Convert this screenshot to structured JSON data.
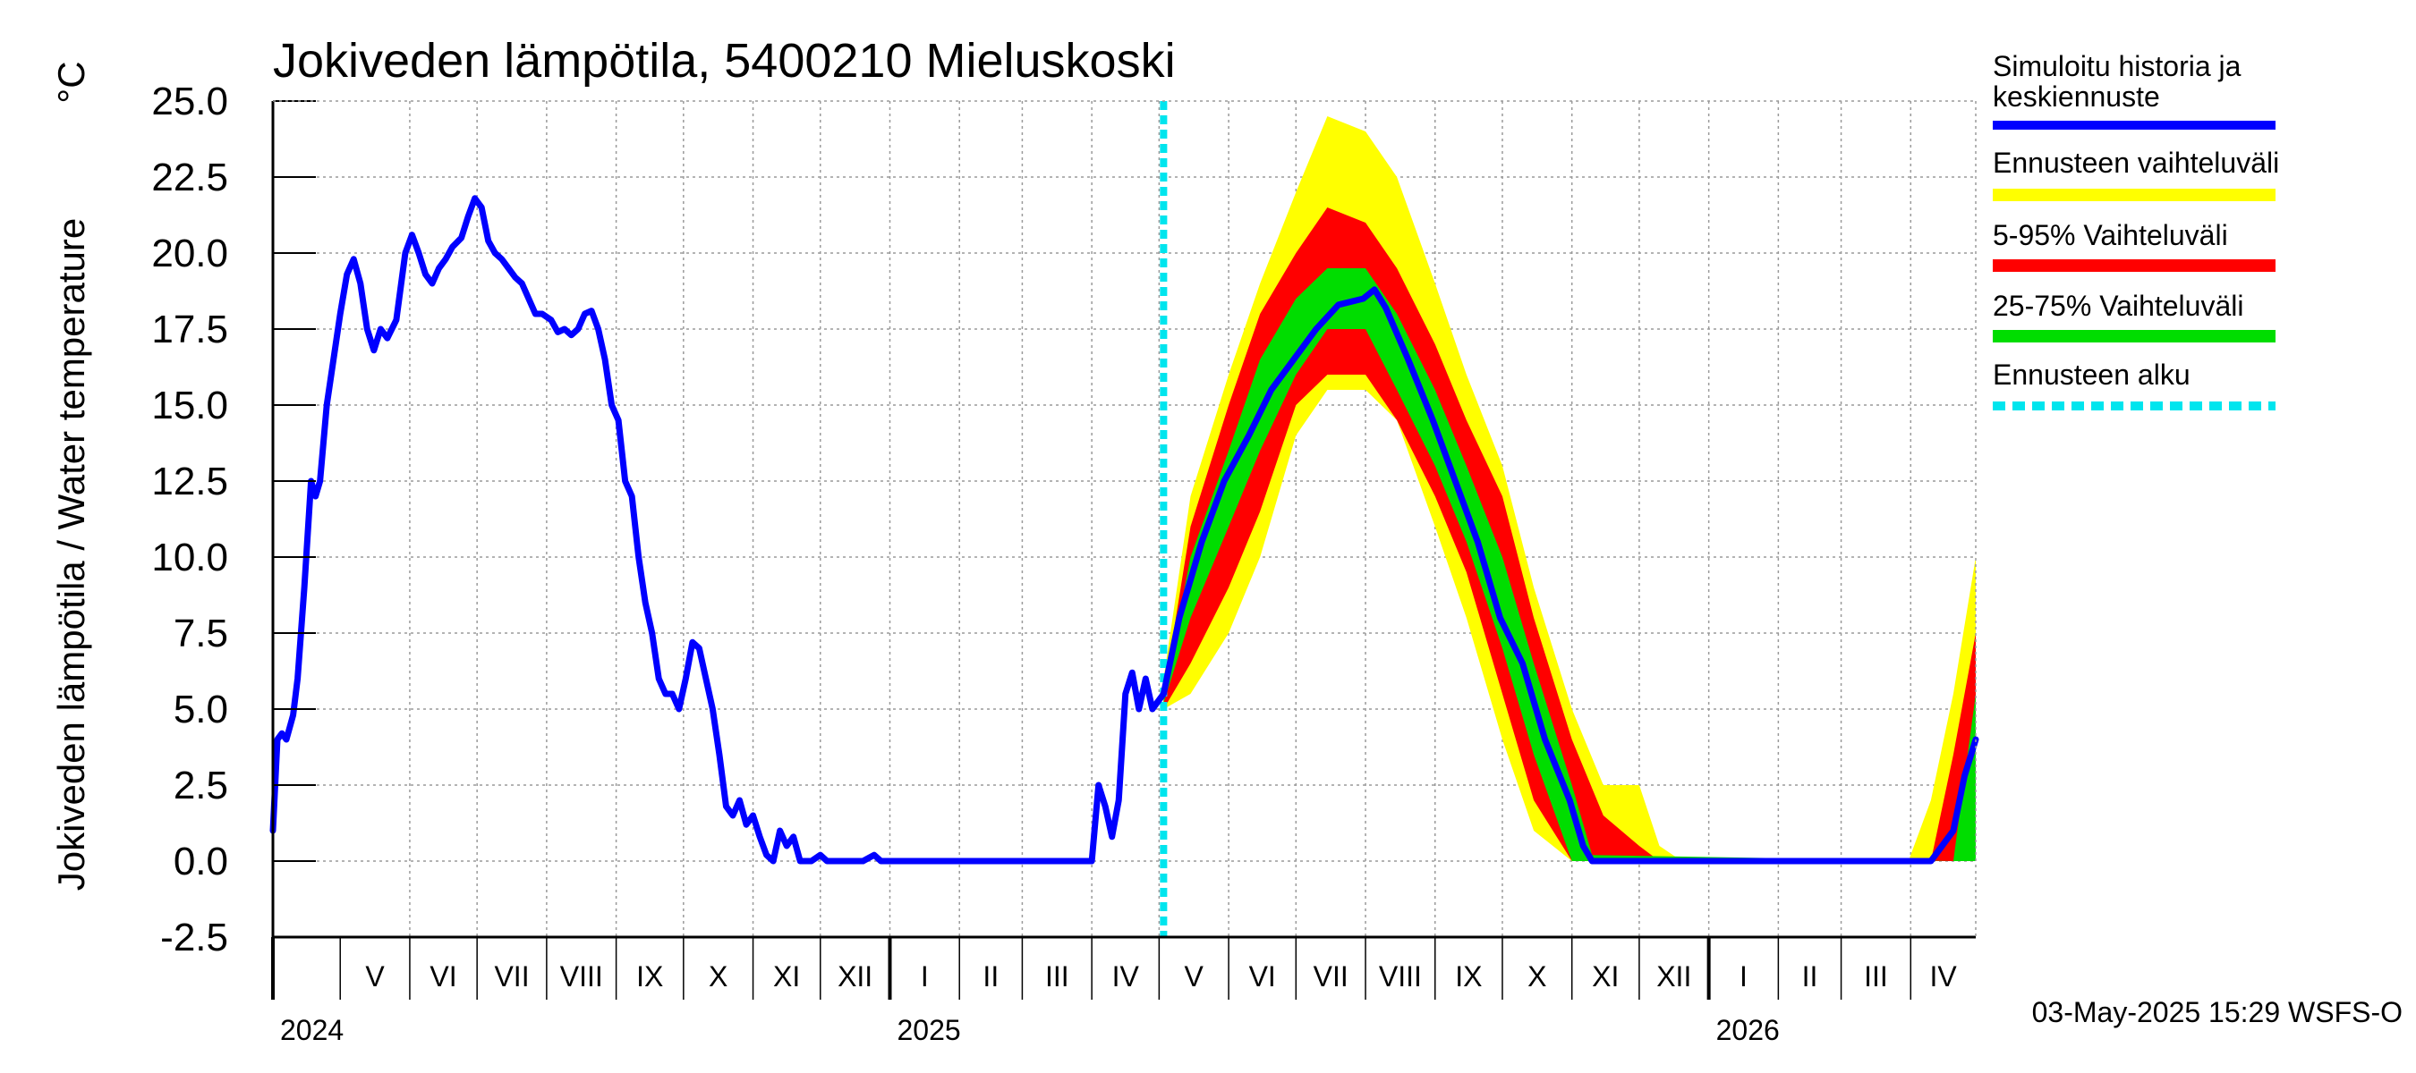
{
  "chart_data": {
    "type": "line",
    "title": "Jokiveden lämpötila, 5400210 Mieluskoski",
    "ylabel": "Jokiveden lämpötila / Water temperature",
    "yunit": "°C",
    "ylim": [
      -2.5,
      25.0
    ],
    "yticks": [
      "25.0",
      "22.5",
      "20.0",
      "17.5",
      "15.0",
      "12.5",
      "10.0",
      "7.5",
      "5.0",
      "2.5",
      "0.0",
      "-2.5"
    ],
    "xlim": [
      "2024-04-01",
      "2026-04-30"
    ],
    "forecast_start": "2025-05-03",
    "grid": true,
    "months": [
      {
        "label": "V",
        "start": "2024-05-01",
        "end": "2024-05-31"
      },
      {
        "label": "VI",
        "start": "2024-06-01",
        "end": "2024-06-30"
      },
      {
        "label": "VII",
        "start": "2024-07-01",
        "end": "2024-07-31"
      },
      {
        "label": "VIII",
        "start": "2024-08-01",
        "end": "2024-08-31"
      },
      {
        "label": "IX",
        "start": "2024-09-01",
        "end": "2024-09-30"
      },
      {
        "label": "X",
        "start": "2024-10-01",
        "end": "2024-10-31"
      },
      {
        "label": "XI",
        "start": "2024-11-01",
        "end": "2024-11-30"
      },
      {
        "label": "XII",
        "start": "2024-12-01",
        "end": "2024-12-31"
      },
      {
        "label": "I",
        "start": "2025-01-01",
        "end": "2025-01-31"
      },
      {
        "label": "II",
        "start": "2025-02-01",
        "end": "2025-02-28"
      },
      {
        "label": "III",
        "start": "2025-03-01",
        "end": "2025-03-31"
      },
      {
        "label": "IV",
        "start": "2025-04-01",
        "end": "2025-04-30"
      },
      {
        "label": "V",
        "start": "2025-05-01",
        "end": "2025-05-31"
      },
      {
        "label": "VI",
        "start": "2025-06-01",
        "end": "2025-06-30"
      },
      {
        "label": "VII",
        "start": "2025-07-01",
        "end": "2025-07-31"
      },
      {
        "label": "VIII",
        "start": "2025-08-01",
        "end": "2025-08-31"
      },
      {
        "label": "IX",
        "start": "2025-09-01",
        "end": "2025-09-30"
      },
      {
        "label": "X",
        "start": "2025-10-01",
        "end": "2025-10-31"
      },
      {
        "label": "XI",
        "start": "2025-11-01",
        "end": "2025-11-30"
      },
      {
        "label": "XII",
        "start": "2025-12-01",
        "end": "2025-12-31"
      },
      {
        "label": "I",
        "start": "2026-01-01",
        "end": "2026-01-31"
      },
      {
        "label": "II",
        "start": "2026-02-01",
        "end": "2026-02-28"
      },
      {
        "label": "III",
        "start": "2026-03-01",
        "end": "2026-03-31"
      },
      {
        "label": "IV",
        "start": "2026-04-01",
        "end": "2026-04-30"
      }
    ],
    "years": [
      {
        "label": "2024",
        "date": "2024-04-01"
      },
      {
        "label": "2025",
        "date": "2025-01-01"
      },
      {
        "label": "2026",
        "date": "2026-01-01"
      }
    ],
    "legend": [
      {
        "label": "Simuloitu historia ja\nkeskiennuste",
        "color": "#0000ff",
        "style": "solid"
      },
      {
        "label": "Ennusteen vaihteluväli",
        "color": "#ffff00",
        "style": "solid"
      },
      {
        "label": "5-95% Vaihteluväli",
        "color": "#ff0000",
        "style": "solid"
      },
      {
        "label": "25-75% Vaihteluväli",
        "color": "#00dd00",
        "style": "solid"
      },
      {
        "label": "Ennusteen alku",
        "color": "#00e5ee",
        "style": "dashed"
      }
    ],
    "colors": {
      "history": "#0000ff",
      "range_full": "#ffff00",
      "range_5_95": "#ff0000",
      "range_25_75": "#00dd00",
      "forecast_start": "#00e5ee"
    },
    "series": [
      {
        "name": "Simuloitu historia ja keskiennuste",
        "points": [
          [
            "2024-04-01",
            1.0
          ],
          [
            "2024-04-03",
            4.0
          ],
          [
            "2024-04-05",
            4.2
          ],
          [
            "2024-04-07",
            4.0
          ],
          [
            "2024-04-10",
            4.8
          ],
          [
            "2024-04-12",
            6.0
          ],
          [
            "2024-04-15",
            9.0
          ],
          [
            "2024-04-18",
            12.5
          ],
          [
            "2024-04-20",
            12.0
          ],
          [
            "2024-04-22",
            12.5
          ],
          [
            "2024-04-25",
            15.0
          ],
          [
            "2024-04-28",
            16.5
          ],
          [
            "2024-05-01",
            18.0
          ],
          [
            "2024-05-04",
            19.3
          ],
          [
            "2024-05-07",
            19.8
          ],
          [
            "2024-05-10",
            19.0
          ],
          [
            "2024-05-13",
            17.5
          ],
          [
            "2024-05-16",
            16.8
          ],
          [
            "2024-05-19",
            17.5
          ],
          [
            "2024-05-22",
            17.2
          ],
          [
            "2024-05-26",
            17.8
          ],
          [
            "2024-05-30",
            20.0
          ],
          [
            "2024-06-02",
            20.6
          ],
          [
            "2024-06-05",
            20.0
          ],
          [
            "2024-06-08",
            19.3
          ],
          [
            "2024-06-11",
            19.0
          ],
          [
            "2024-06-14",
            19.5
          ],
          [
            "2024-06-17",
            19.8
          ],
          [
            "2024-06-20",
            20.2
          ],
          [
            "2024-06-24",
            20.5
          ],
          [
            "2024-06-27",
            21.2
          ],
          [
            "2024-06-30",
            21.8
          ],
          [
            "2024-07-03",
            21.5
          ],
          [
            "2024-07-06",
            20.4
          ],
          [
            "2024-07-09",
            20.0
          ],
          [
            "2024-07-12",
            19.8
          ],
          [
            "2024-07-15",
            19.5
          ],
          [
            "2024-07-18",
            19.2
          ],
          [
            "2024-07-21",
            19.0
          ],
          [
            "2024-07-24",
            18.5
          ],
          [
            "2024-07-27",
            18.0
          ],
          [
            "2024-07-30",
            18.0
          ],
          [
            "2024-08-03",
            17.8
          ],
          [
            "2024-08-06",
            17.4
          ],
          [
            "2024-08-09",
            17.5
          ],
          [
            "2024-08-12",
            17.3
          ],
          [
            "2024-08-15",
            17.5
          ],
          [
            "2024-08-18",
            18.0
          ],
          [
            "2024-08-21",
            18.1
          ],
          [
            "2024-08-24",
            17.5
          ],
          [
            "2024-08-27",
            16.5
          ],
          [
            "2024-08-30",
            15.0
          ],
          [
            "2024-09-02",
            14.5
          ],
          [
            "2024-09-05",
            12.5
          ],
          [
            "2024-09-08",
            12.0
          ],
          [
            "2024-09-11",
            10.0
          ],
          [
            "2024-09-14",
            8.5
          ],
          [
            "2024-09-17",
            7.5
          ],
          [
            "2024-09-20",
            6.0
          ],
          [
            "2024-09-23",
            5.5
          ],
          [
            "2024-09-26",
            5.5
          ],
          [
            "2024-09-29",
            5.0
          ],
          [
            "2024-10-02",
            6.0
          ],
          [
            "2024-10-05",
            7.2
          ],
          [
            "2024-10-08",
            7.0
          ],
          [
            "2024-10-11",
            6.0
          ],
          [
            "2024-10-14",
            5.0
          ],
          [
            "2024-10-17",
            3.5
          ],
          [
            "2024-10-20",
            1.8
          ],
          [
            "2024-10-23",
            1.5
          ],
          [
            "2024-10-26",
            2.0
          ],
          [
            "2024-10-29",
            1.2
          ],
          [
            "2024-11-01",
            1.5
          ],
          [
            "2024-11-04",
            0.8
          ],
          [
            "2024-11-07",
            0.2
          ],
          [
            "2024-11-10",
            0.0
          ],
          [
            "2024-11-13",
            1.0
          ],
          [
            "2024-11-16",
            0.5
          ],
          [
            "2024-11-19",
            0.8
          ],
          [
            "2024-11-22",
            0.0
          ],
          [
            "2024-11-27",
            0.0
          ],
          [
            "2024-12-01",
            0.2
          ],
          [
            "2024-12-04",
            0.0
          ],
          [
            "2024-12-20",
            0.0
          ],
          [
            "2024-12-25",
            0.2
          ],
          [
            "2024-12-28",
            0.0
          ],
          [
            "2025-04-01",
            0.0
          ],
          [
            "2025-04-04",
            2.5
          ],
          [
            "2025-04-07",
            1.8
          ],
          [
            "2025-04-10",
            0.8
          ],
          [
            "2025-04-13",
            2.0
          ],
          [
            "2025-04-16",
            5.5
          ],
          [
            "2025-04-19",
            6.2
          ],
          [
            "2025-04-22",
            5.0
          ],
          [
            "2025-04-25",
            6.0
          ],
          [
            "2025-04-28",
            5.0
          ],
          [
            "2025-05-03",
            5.5
          ],
          [
            "2025-05-10",
            8.0
          ],
          [
            "2025-05-20",
            10.5
          ],
          [
            "2025-05-30",
            12.5
          ],
          [
            "2025-06-10",
            14.0
          ],
          [
            "2025-06-20",
            15.5
          ],
          [
            "2025-06-30",
            16.5
          ],
          [
            "2025-07-10",
            17.5
          ],
          [
            "2025-07-20",
            18.3
          ],
          [
            "2025-07-31",
            18.5
          ],
          [
            "2025-08-05",
            18.8
          ],
          [
            "2025-08-10",
            18.2
          ],
          [
            "2025-08-20",
            16.5
          ],
          [
            "2025-08-31",
            14.5
          ],
          [
            "2025-09-10",
            12.5
          ],
          [
            "2025-09-20",
            10.5
          ],
          [
            "2025-09-30",
            8.0
          ],
          [
            "2025-10-10",
            6.5
          ],
          [
            "2025-10-20",
            4.0
          ],
          [
            "2025-10-31",
            2.0
          ],
          [
            "2025-11-06",
            0.5
          ],
          [
            "2025-11-10",
            0.0
          ],
          [
            "2026-04-10",
            0.0
          ],
          [
            "2026-04-20",
            1.0
          ],
          [
            "2026-04-25",
            2.8
          ],
          [
            "2026-04-30",
            4.0
          ]
        ]
      },
      {
        "name": "Ennusteen vaihteluväli",
        "band": [
          [
            "2025-05-03",
            5.0,
            6.0
          ],
          [
            "2025-05-15",
            5.5,
            12.0
          ],
          [
            "2025-06-01",
            7.5,
            16.0
          ],
          [
            "2025-06-15",
            10.0,
            19.0
          ],
          [
            "2025-07-01",
            14.0,
            22.0
          ],
          [
            "2025-07-15",
            15.5,
            24.5
          ],
          [
            "2025-08-01",
            15.5,
            24.0
          ],
          [
            "2025-08-15",
            14.5,
            22.5
          ],
          [
            "2025-09-01",
            11.0,
            19.0
          ],
          [
            "2025-09-15",
            8.0,
            16.0
          ],
          [
            "2025-10-01",
            4.0,
            13.0
          ],
          [
            "2025-10-15",
            1.0,
            9.0
          ],
          [
            "2025-11-01",
            0.0,
            5.0
          ],
          [
            "2025-11-15",
            0.0,
            2.5
          ],
          [
            "2025-12-01",
            0.0,
            2.5
          ],
          [
            "2025-12-10",
            0.0,
            0.5
          ],
          [
            "2025-12-20",
            0.0,
            0.0
          ],
          [
            "2026-03-31",
            0.0,
            0.0
          ],
          [
            "2026-04-10",
            0.0,
            2.0
          ],
          [
            "2026-04-20",
            0.0,
            5.5
          ],
          [
            "2026-04-30",
            0.0,
            10.0
          ]
        ]
      },
      {
        "name": "5-95% Vaihteluväli",
        "band": [
          [
            "2025-05-03",
            5.0,
            5.5
          ],
          [
            "2025-05-15",
            6.5,
            11.0
          ],
          [
            "2025-06-01",
            9.0,
            15.0
          ],
          [
            "2025-06-15",
            11.5,
            18.0
          ],
          [
            "2025-07-01",
            15.0,
            20.0
          ],
          [
            "2025-07-15",
            16.0,
            21.5
          ],
          [
            "2025-08-01",
            16.0,
            21.0
          ],
          [
            "2025-08-15",
            14.5,
            19.5
          ],
          [
            "2025-09-01",
            12.0,
            17.0
          ],
          [
            "2025-09-15",
            9.5,
            14.5
          ],
          [
            "2025-10-01",
            5.5,
            12.0
          ],
          [
            "2025-10-15",
            2.0,
            8.0
          ],
          [
            "2025-11-01",
            0.0,
            4.0
          ],
          [
            "2025-11-15",
            0.0,
            1.5
          ],
          [
            "2025-12-01",
            0.0,
            0.5
          ],
          [
            "2025-12-10",
            0.0,
            0.0
          ],
          [
            "2026-04-10",
            0.0,
            0.0
          ],
          [
            "2026-04-20",
            0.0,
            3.5
          ],
          [
            "2026-04-30",
            0.0,
            7.5
          ]
        ]
      },
      {
        "name": "25-75% Vaihteluväli",
        "band": [
          [
            "2025-05-03",
            5.2,
            5.4
          ],
          [
            "2025-05-15",
            8.0,
            10.0
          ],
          [
            "2025-06-01",
            11.0,
            13.5
          ],
          [
            "2025-06-15",
            13.5,
            16.5
          ],
          [
            "2025-07-01",
            16.0,
            18.5
          ],
          [
            "2025-07-15",
            17.5,
            19.5
          ],
          [
            "2025-08-01",
            17.5,
            19.5
          ],
          [
            "2025-08-15",
            15.5,
            18.0
          ],
          [
            "2025-09-01",
            13.0,
            15.5
          ],
          [
            "2025-09-15",
            10.5,
            13.0
          ],
          [
            "2025-10-01",
            7.0,
            10.0
          ],
          [
            "2025-10-15",
            3.5,
            6.5
          ],
          [
            "2025-11-01",
            0.0,
            2.5
          ],
          [
            "2025-11-10",
            0.0,
            0.2
          ],
          [
            "2026-04-20",
            0.0,
            0.0
          ],
          [
            "2026-04-30",
            0.0,
            5.5
          ]
        ]
      }
    ]
  },
  "footer": {
    "timestamp": "03-May-2025 15:29 WSFS-O"
  }
}
